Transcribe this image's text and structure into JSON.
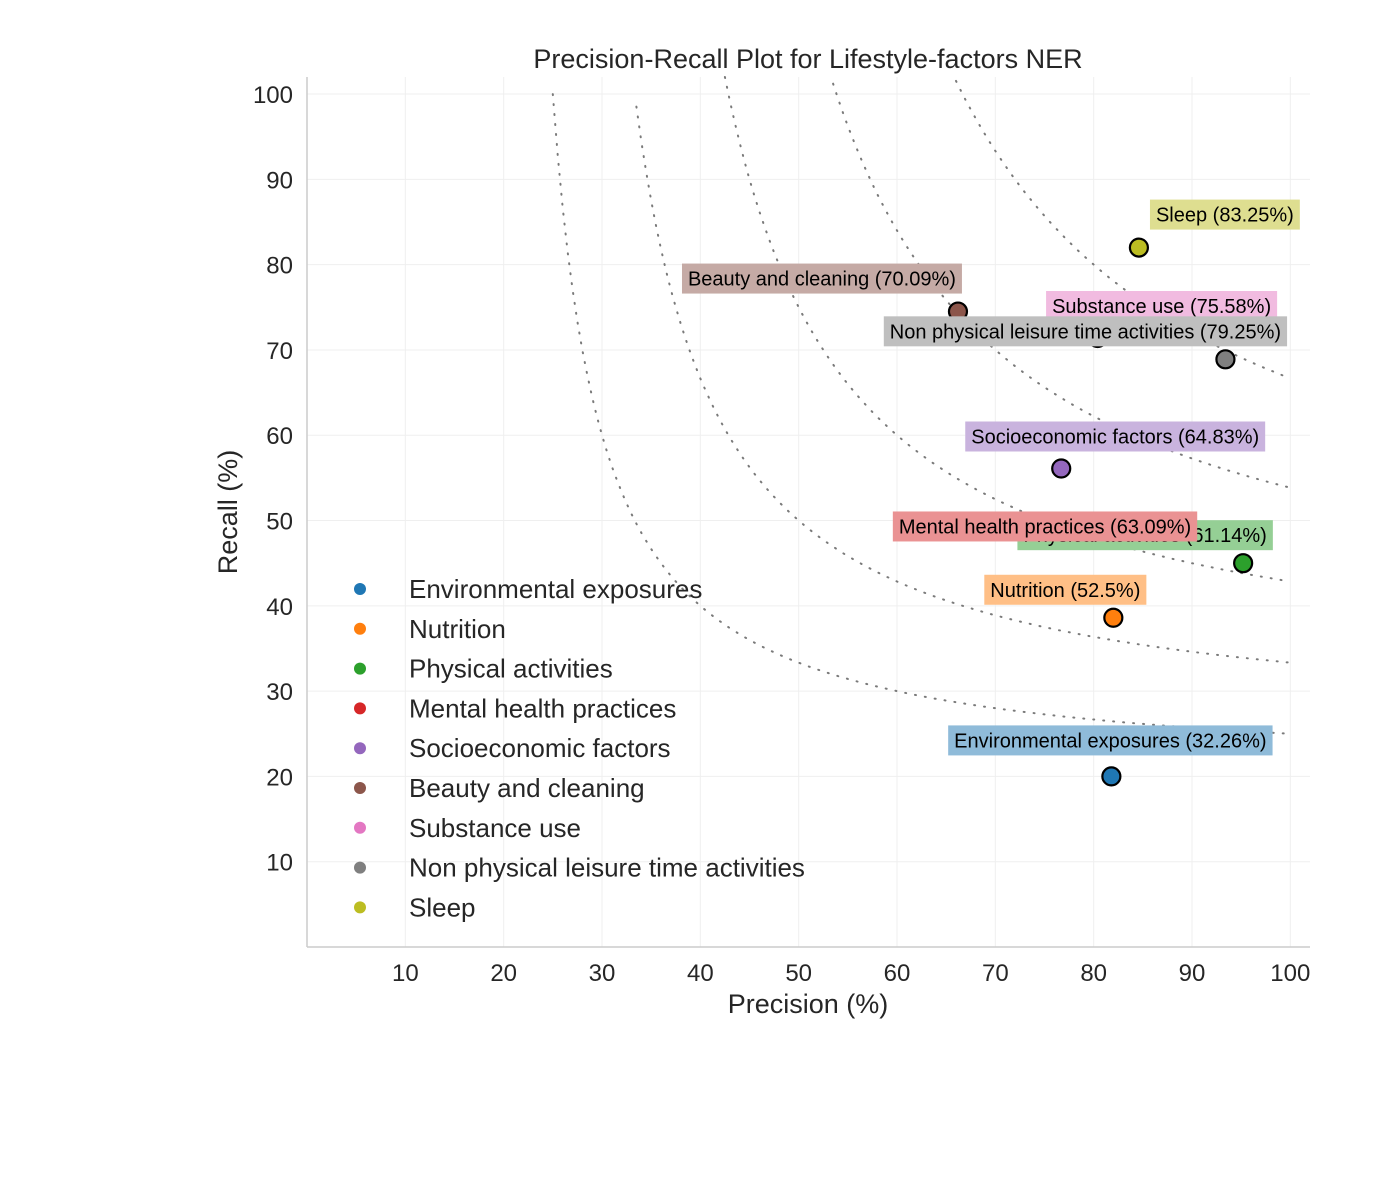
{
  "chart_data": {
    "type": "scatter",
    "title": "Precision-Recall Plot for Lifestyle-factors NER",
    "xlabel": "Precision (%)",
    "ylabel": "Recall (%)",
    "xlim": [
      0,
      102
    ],
    "ylim": [
      0,
      102
    ],
    "xticks": [
      "10",
      "20",
      "30",
      "40",
      "50",
      "60",
      "70",
      "80",
      "90",
      "100"
    ],
    "yticks": [
      "10",
      "20",
      "30",
      "40",
      "50",
      "60",
      "70",
      "80",
      "90",
      "100"
    ],
    "grid": true,
    "legend_position": "lower-left",
    "f1_iso_curves": [
      0.4,
      0.5,
      0.6,
      0.7,
      0.8
    ],
    "series": [
      {
        "name": "Environmental exposures",
        "precision": 81.8,
        "recall": 20.0,
        "label": "Environmental exposures (32.26%)",
        "color": "#1f77b4",
        "label_bg": "#8fbbd9"
      },
      {
        "name": "Nutrition",
        "precision": 82.0,
        "recall": 38.6,
        "label": "Nutrition (52.5%)",
        "color": "#ff7f0e",
        "label_bg": "#ffbf86"
      },
      {
        "name": "Physical activities",
        "precision": 95.2,
        "recall": 45.0,
        "label": "Physical activities (61.14%)",
        "color": "#2ca02c",
        "label_bg": "#95cf95"
      },
      {
        "name": "Mental health practices",
        "precision": 89.9,
        "recall": 48.6,
        "label": "Mental health practices (63.09%)",
        "color": "#d62728",
        "label_bg": "#ea9293"
      },
      {
        "name": "Socioeconomic factors",
        "precision": 76.7,
        "recall": 56.1,
        "label": "Socioeconomic factors (64.83%)",
        "color": "#9467bd",
        "label_bg": "#c9b3de"
      },
      {
        "name": "Beauty and cleaning",
        "precision": 66.2,
        "recall": 74.5,
        "label": "Beauty and cleaning (70.09%)",
        "color": "#8c564b",
        "label_bg": "#c5aaa5"
      },
      {
        "name": "Substance use",
        "precision": 80.4,
        "recall": 71.4,
        "label": "Substance use (75.58%)",
        "color": "#e377c2",
        "label_bg": "#f1bbe0"
      },
      {
        "name": "Non physical leisure time activities",
        "precision": 93.4,
        "recall": 68.9,
        "label": "Non physical leisure time activities (79.25%)",
        "color": "#7f7f7f",
        "label_bg": "#bfbfbf"
      },
      {
        "name": "Sleep",
        "precision": 84.6,
        "recall": 82.0,
        "label": "Sleep (83.25%)",
        "color": "#bcbd22",
        "label_bg": "#dede90"
      }
    ]
  }
}
